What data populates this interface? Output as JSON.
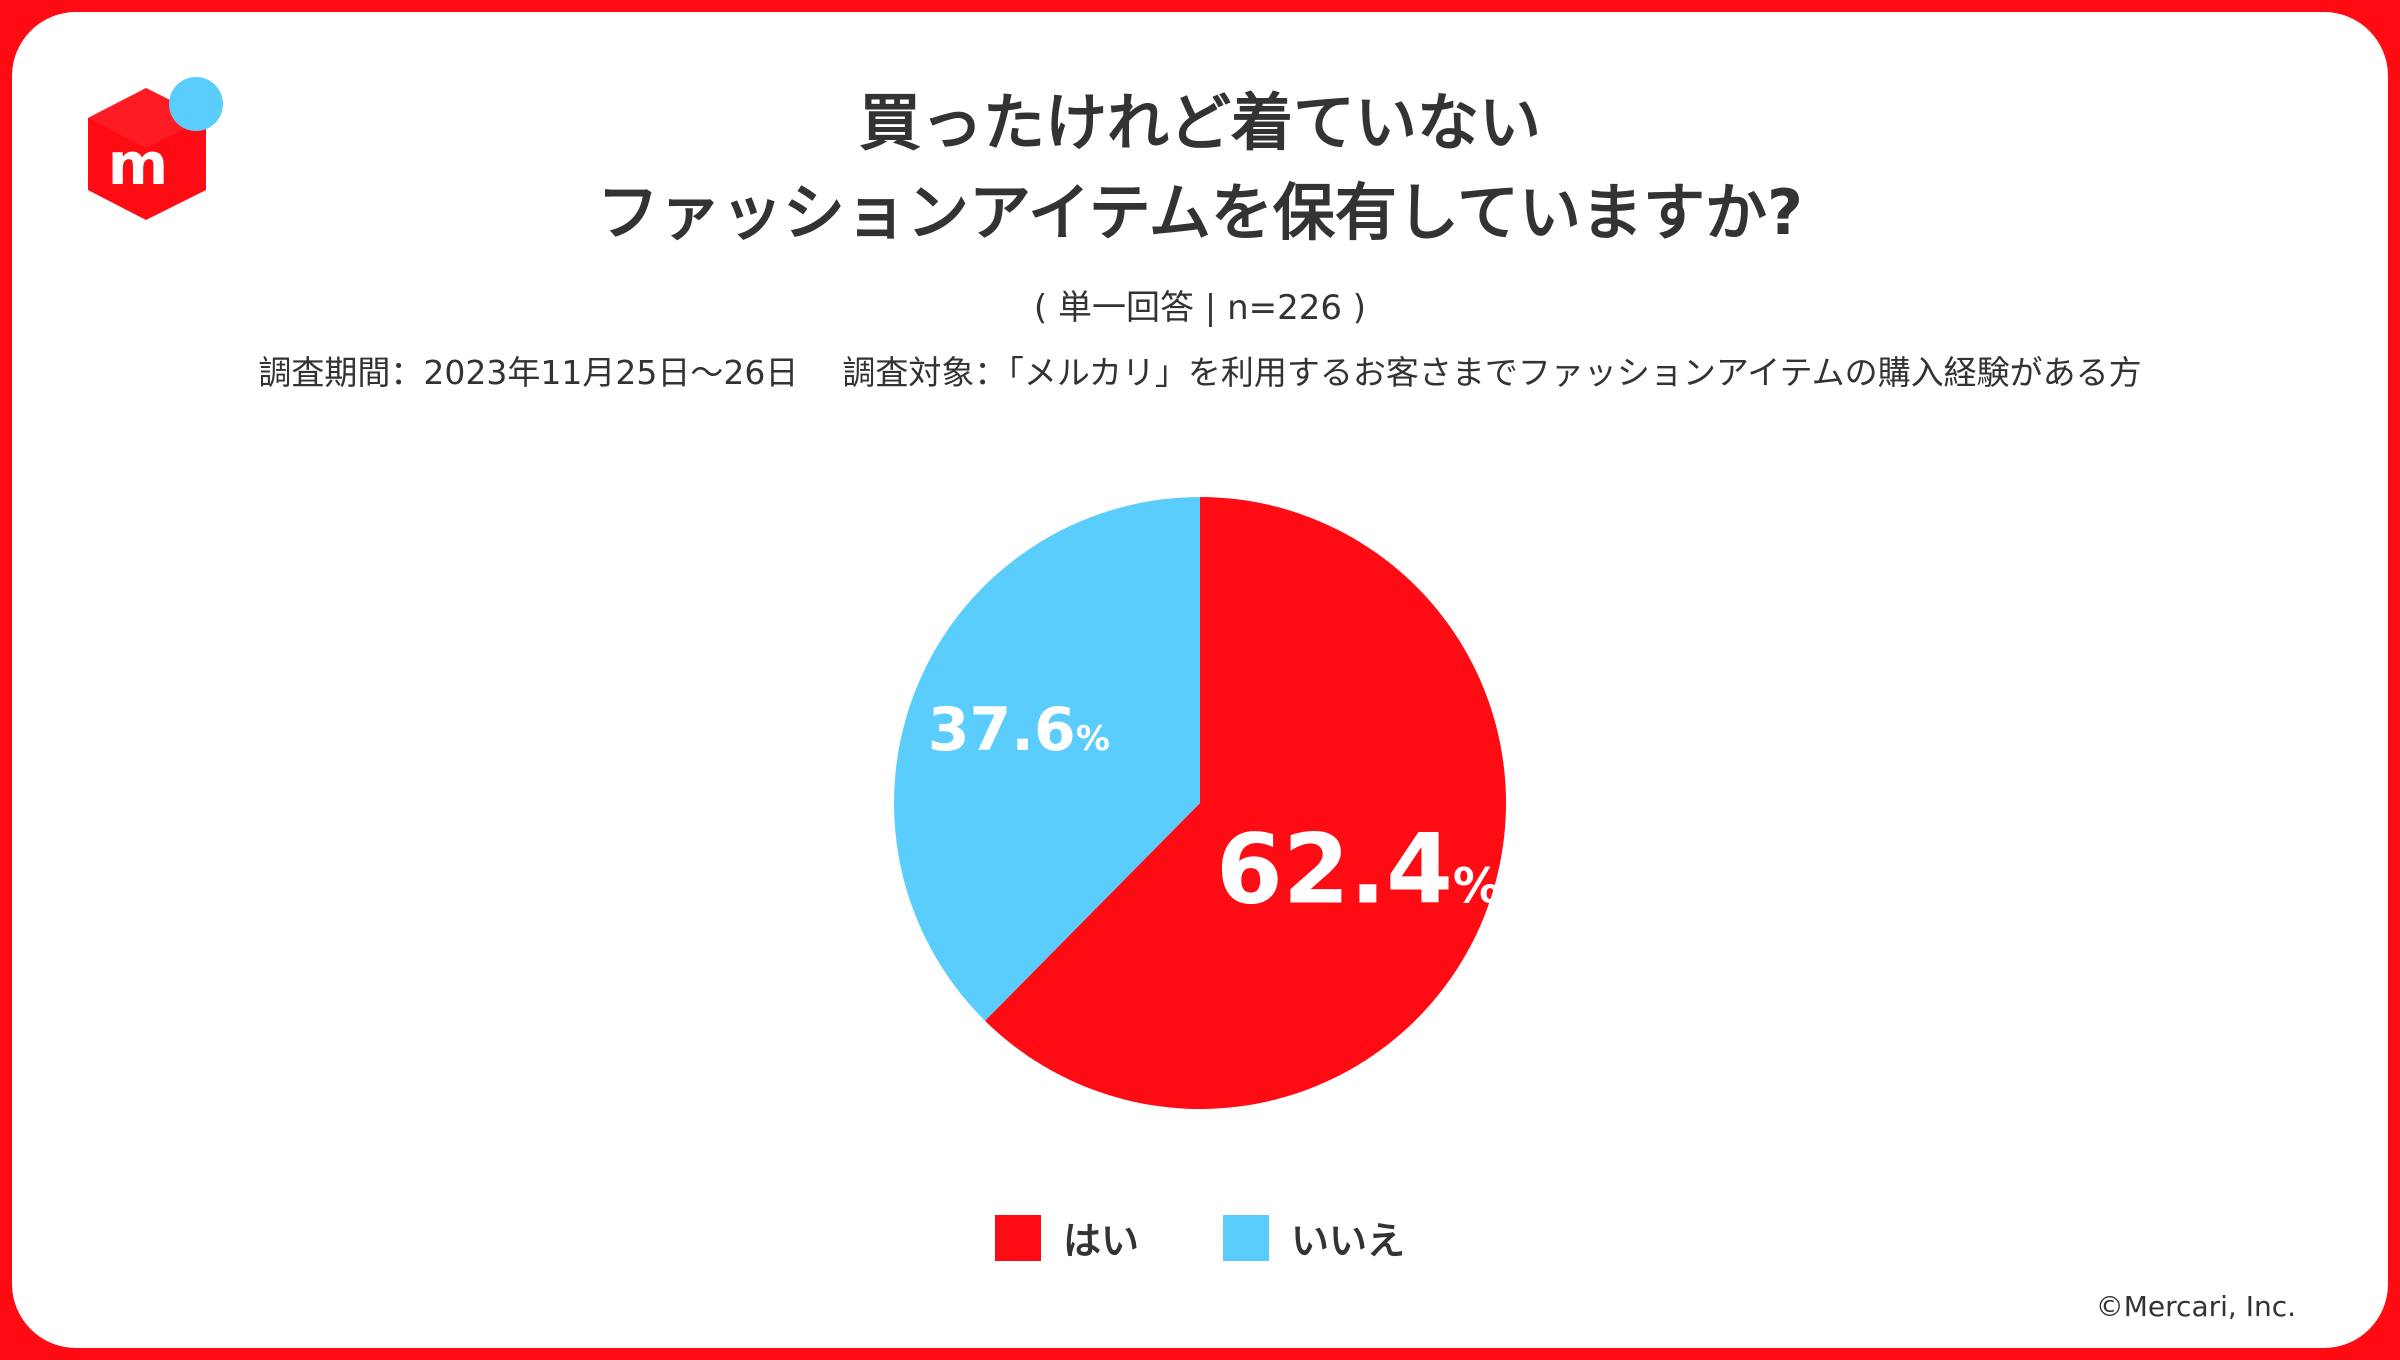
{
  "logo": {
    "icon": "mercari-box-icon",
    "letter": "m",
    "box_color": "#ff0b14",
    "dot_color": "#5bcdfc"
  },
  "title_line1": "買ったけれど着ていない",
  "title_line2": "ファッションアイテムを保有していますか?",
  "subtitle": "( 単一回答 | n=226 )",
  "survey_period": "調査期間：2023年11月25日〜26日",
  "survey_target": "調査対象：「メルカリ」を利用するお客さまでファッションアイテムの購入経験がある方",
  "chart_data": {
    "type": "pie",
    "categories": [
      "はい",
      "いいえ"
    ],
    "values": [
      62.4,
      37.6
    ],
    "unit": "%",
    "colors": [
      "#ff0b14",
      "#5bcdfc"
    ],
    "labels": [
      "62.4",
      "37.6"
    ],
    "legend_position": "bottom"
  },
  "copyright": "©Mercari, Inc."
}
